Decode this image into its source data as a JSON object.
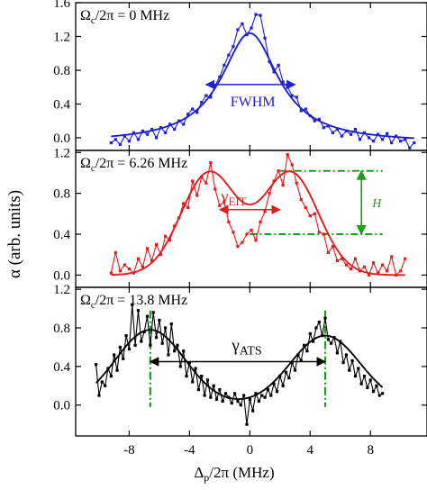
{
  "figure": {
    "ylabel": "α (arb. units)",
    "xlabel_main": "Δ",
    "xlabel_sub": "p",
    "xlabel_rest": "/2π (MHz)",
    "x_ticks": [
      -8,
      -4,
      0,
      4,
      8
    ],
    "x_tick_labels": [
      "-8",
      "-4",
      "0",
      "4",
      "8"
    ]
  },
  "chart_data": [
    {
      "type": "line",
      "panel": "top",
      "color": "#1f1fd6",
      "label_main": "Ω",
      "label_sub": "c",
      "label_rest": "/2π = 0 MHz",
      "annotations": {
        "fwhm": "FWHM"
      },
      "ylim": [
        -0.15,
        1.6
      ],
      "y_ticks": [
        0.0,
        0.4,
        0.8,
        1.2,
        1.6
      ],
      "y_tick_labels": [
        "0.0",
        "0.4",
        "0.8",
        "1.2",
        "1.6"
      ],
      "data_points": [
        [
          -9.2,
          -0.06
        ],
        [
          -8.9,
          -0.02
        ],
        [
          -8.6,
          -0.08
        ],
        [
          -8.3,
          0.02
        ],
        [
          -8.0,
          -0.04
        ],
        [
          -7.7,
          0.06
        ],
        [
          -7.4,
          -0.02
        ],
        [
          -7.1,
          0.08
        ],
        [
          -6.8,
          0.04
        ],
        [
          -6.5,
          0.1
        ],
        [
          -6.2,
          0.0
        ],
        [
          -5.9,
          0.12
        ],
        [
          -5.6,
          0.06
        ],
        [
          -5.3,
          0.16
        ],
        [
          -5.0,
          0.1
        ],
        [
          -4.7,
          0.2
        ],
        [
          -4.4,
          0.16
        ],
        [
          -4.1,
          0.28
        ],
        [
          -3.8,
          0.34
        ],
        [
          -3.5,
          0.3
        ],
        [
          -3.2,
          0.42
        ],
        [
          -2.9,
          0.5
        ],
        [
          -2.6,
          0.48
        ],
        [
          -2.3,
          0.62
        ],
        [
          -2.0,
          0.72
        ],
        [
          -1.7,
          0.86
        ],
        [
          -1.4,
          0.98
        ],
        [
          -1.1,
          1.08
        ],
        [
          -0.8,
          1.28
        ],
        [
          -0.5,
          1.35
        ],
        [
          -0.2,
          1.22
        ],
        [
          0.1,
          1.3
        ],
        [
          0.4,
          1.46
        ],
        [
          0.7,
          1.45
        ],
        [
          1.0,
          1.18
        ],
        [
          1.3,
          0.9
        ],
        [
          1.6,
          0.78
        ],
        [
          1.9,
          0.86
        ],
        [
          2.2,
          0.66
        ],
        [
          2.5,
          0.6
        ],
        [
          2.8,
          0.5
        ],
        [
          3.1,
          0.48
        ],
        [
          3.4,
          0.32
        ],
        [
          3.7,
          0.34
        ],
        [
          4.0,
          0.26
        ],
        [
          4.3,
          0.2
        ],
        [
          4.6,
          0.22
        ],
        [
          4.9,
          0.12
        ],
        [
          5.2,
          0.14
        ],
        [
          5.5,
          0.06
        ],
        [
          5.8,
          0.1
        ],
        [
          6.1,
          0.02
        ],
        [
          6.4,
          0.08
        ],
        [
          6.7,
          0.04
        ],
        [
          7.0,
          0.1
        ],
        [
          7.3,
          -0.02
        ],
        [
          7.6,
          0.06
        ],
        [
          7.9,
          0.0
        ],
        [
          8.2,
          -0.04
        ],
        [
          8.5,
          0.04
        ],
        [
          8.8,
          -0.02
        ],
        [
          9.1,
          0.05
        ],
        [
          9.4,
          -0.06
        ],
        [
          9.7,
          0.02
        ],
        [
          10.0,
          -0.04
        ],
        [
          10.3,
          -0.02
        ],
        [
          10.6,
          -0.12
        ],
        [
          10.9,
          -0.06
        ]
      ],
      "fit": {
        "model": "lorentzian",
        "amplitude": 1.3,
        "center": 0.0,
        "fwhm": 4.6,
        "offset": -0.06
      },
      "fwhm_arrow": {
        "x_start": -2.9,
        "x_end": 3.0,
        "y": 0.63
      }
    },
    {
      "type": "line",
      "panel": "middle",
      "color": "#e21b1b",
      "label_main": "Ω",
      "label_sub": "c",
      "label_rest": "/2π = 6.26 MHz",
      "annotations": {
        "gamma_main": "γ",
        "gamma_sub": "EIT",
        "h": "H"
      },
      "ylim": [
        -0.12,
        1.22
      ],
      "y_ticks": [
        0.0,
        0.4,
        0.8,
        1.2
      ],
      "y_tick_labels": [
        "0.0",
        "0.4",
        "0.8",
        "1.2"
      ],
      "data_points": [
        [
          -9.2,
          0.02
        ],
        [
          -8.9,
          0.22
        ],
        [
          -8.6,
          0.04
        ],
        [
          -8.3,
          0.1
        ],
        [
          -8.0,
          0.06
        ],
        [
          -7.7,
          0.02
        ],
        [
          -7.4,
          0.16
        ],
        [
          -7.1,
          0.08
        ],
        [
          -6.8,
          0.26
        ],
        [
          -6.5,
          0.14
        ],
        [
          -6.2,
          0.3
        ],
        [
          -5.9,
          0.2
        ],
        [
          -5.6,
          0.38
        ],
        [
          -5.3,
          0.34
        ],
        [
          -5.0,
          0.48
        ],
        [
          -4.7,
          0.56
        ],
        [
          -4.4,
          0.7
        ],
        [
          -4.1,
          0.66
        ],
        [
          -3.8,
          0.92
        ],
        [
          -3.5,
          0.78
        ],
        [
          -3.2,
          0.96
        ],
        [
          -2.9,
          0.9
        ],
        [
          -2.6,
          1.1
        ],
        [
          -2.3,
          0.84
        ],
        [
          -2.0,
          0.68
        ],
        [
          -1.7,
          0.72
        ],
        [
          -1.4,
          0.52
        ],
        [
          -1.1,
          0.42
        ],
        [
          -0.8,
          0.28
        ],
        [
          -0.5,
          0.32
        ],
        [
          -0.2,
          0.4
        ],
        [
          0.1,
          0.44
        ],
        [
          0.4,
          0.34
        ],
        [
          0.7,
          0.52
        ],
        [
          1.0,
          0.62
        ],
        [
          1.3,
          0.8
        ],
        [
          1.6,
          0.92
        ],
        [
          1.9,
          1.02
        ],
        [
          2.2,
          0.88
        ],
        [
          2.5,
          1.18
        ],
        [
          2.8,
          1.08
        ],
        [
          3.1,
          0.9
        ],
        [
          3.4,
          0.74
        ],
        [
          3.7,
          0.66
        ],
        [
          4.0,
          0.58
        ],
        [
          4.3,
          0.6
        ],
        [
          4.6,
          0.42
        ],
        [
          4.9,
          0.4
        ],
        [
          5.2,
          0.22
        ],
        [
          5.5,
          0.28
        ],
        [
          5.8,
          0.14
        ],
        [
          6.1,
          0.16
        ],
        [
          6.4,
          0.1
        ],
        [
          6.7,
          0.06
        ],
        [
          7.0,
          0.16
        ],
        [
          7.3,
          0.04
        ],
        [
          7.6,
          0.08
        ],
        [
          7.9,
          0.0
        ],
        [
          8.2,
          0.12
        ],
        [
          8.5,
          0.02
        ],
        [
          8.8,
          0.1
        ],
        [
          9.1,
          0.04
        ],
        [
          9.4,
          0.18
        ],
        [
          9.7,
          0.0
        ],
        [
          10.0,
          0.04
        ],
        [
          10.3,
          0.16
        ]
      ],
      "fit": {
        "model": "double-gaussian",
        "peaks": [
          [
            -2.7,
            1.0
          ],
          [
            2.7,
            1.0
          ]
        ],
        "sigma": 1.85,
        "offset": 0.0
      },
      "gamma_arrow": {
        "x_start": -2.0,
        "x_end": 2.0,
        "y": 0.64
      },
      "h_arrow": {
        "x": 7.4,
        "y_bottom": 0.4,
        "y_top": 1.02
      },
      "ref_lines": [
        {
          "x_start": 2.0,
          "x_end": 8.8,
          "y": 1.02
        },
        {
          "x_start": 0.0,
          "x_end": 8.8,
          "y": 0.4
        }
      ]
    },
    {
      "type": "line",
      "panel": "bottom",
      "color": "#000000",
      "accent": "#1aa01a",
      "label_main": "Ω",
      "label_sub": "c",
      "label_rest": "/2π = 13.8 MHz",
      "annotations": {
        "gamma_main": "γ",
        "gamma_sub": "ATS"
      },
      "ylim": [
        -0.32,
        1.22
      ],
      "y_ticks": [
        0.0,
        0.4,
        0.8,
        1.2
      ],
      "y_tick_labels": [
        "0.0",
        "0.4",
        "0.8",
        "1.2"
      ],
      "data_points": [
        [
          -10.2,
          0.42
        ],
        [
          -10.0,
          0.1
        ],
        [
          -9.8,
          0.24
        ],
        [
          -9.6,
          0.2
        ],
        [
          -9.4,
          0.38
        ],
        [
          -9.2,
          0.3
        ],
        [
          -9.0,
          0.52
        ],
        [
          -8.8,
          0.36
        ],
        [
          -8.6,
          0.6
        ],
        [
          -8.4,
          0.48
        ],
        [
          -8.2,
          0.72
        ],
        [
          -8.0,
          0.58
        ],
        [
          -7.8,
          1.04
        ],
        [
          -7.6,
          0.62
        ],
        [
          -7.4,
          0.98
        ],
        [
          -7.2,
          0.66
        ],
        [
          -7.0,
          0.76
        ],
        [
          -6.8,
          0.92
        ],
        [
          -6.6,
          0.62
        ],
        [
          -6.4,
          0.96
        ],
        [
          -6.2,
          0.7
        ],
        [
          -6.0,
          0.88
        ],
        [
          -5.8,
          0.64
        ],
        [
          -5.6,
          0.8
        ],
        [
          -5.4,
          0.52
        ],
        [
          -5.2,
          0.84
        ],
        [
          -5.0,
          0.56
        ],
        [
          -4.8,
          0.62
        ],
        [
          -4.6,
          0.4
        ],
        [
          -4.4,
          0.56
        ],
        [
          -4.2,
          0.3
        ],
        [
          -4.0,
          0.44
        ],
        [
          -3.8,
          0.24
        ],
        [
          -3.6,
          0.38
        ],
        [
          -3.4,
          0.16
        ],
        [
          -3.2,
          0.3
        ],
        [
          -3.0,
          0.1
        ],
        [
          -2.8,
          0.26
        ],
        [
          -2.6,
          0.08
        ],
        [
          -2.4,
          0.2
        ],
        [
          -2.2,
          0.06
        ],
        [
          -2.0,
          0.16
        ],
        [
          -1.8,
          0.04
        ],
        [
          -1.6,
          0.12
        ],
        [
          -1.4,
          0.08
        ],
        [
          -1.2,
          0.02
        ],
        [
          -1.0,
          0.12
        ],
        [
          -0.8,
          0.04
        ],
        [
          -0.6,
          0.0
        ],
        [
          -0.4,
          0.1
        ],
        [
          -0.2,
          -0.2
        ],
        [
          0.0,
          0.06
        ],
        [
          0.2,
          -0.06
        ],
        [
          0.4,
          0.12
        ],
        [
          0.6,
          0.04
        ],
        [
          0.8,
          0.1
        ],
        [
          1.0,
          0.08
        ],
        [
          1.2,
          0.16
        ],
        [
          1.4,
          0.1
        ],
        [
          1.6,
          0.22
        ],
        [
          1.8,
          0.14
        ],
        [
          2.0,
          0.3
        ],
        [
          2.2,
          0.2
        ],
        [
          2.4,
          0.34
        ],
        [
          2.6,
          0.28
        ],
        [
          2.8,
          0.44
        ],
        [
          3.0,
          0.36
        ],
        [
          3.2,
          0.52
        ],
        [
          3.4,
          0.46
        ],
        [
          3.6,
          0.62
        ],
        [
          3.8,
          0.56
        ],
        [
          4.0,
          0.74
        ],
        [
          4.2,
          0.66
        ],
        [
          4.4,
          0.8
        ],
        [
          4.6,
          0.86
        ],
        [
          4.8,
          0.72
        ],
        [
          5.0,
          0.9
        ],
        [
          5.2,
          0.68
        ],
        [
          5.4,
          0.64
        ],
        [
          5.6,
          0.7
        ],
        [
          5.8,
          0.54
        ],
        [
          6.0,
          0.66
        ],
        [
          6.2,
          0.44
        ],
        [
          6.4,
          0.52
        ],
        [
          6.6,
          0.36
        ],
        [
          6.8,
          0.46
        ],
        [
          7.0,
          0.3
        ],
        [
          7.2,
          0.38
        ],
        [
          7.4,
          0.22
        ],
        [
          7.6,
          0.3
        ],
        [
          7.8,
          0.18
        ],
        [
          8.0,
          0.26
        ],
        [
          8.2,
          0.14
        ],
        [
          8.4,
          0.2
        ],
        [
          8.6,
          0.1
        ],
        [
          8.8,
          0.12
        ]
      ],
      "fit": {
        "model": "double-gaussian",
        "peaks": [
          [
            -6.6,
            0.78
          ],
          [
            5.0,
            0.72
          ]
        ],
        "sigma": 2.3,
        "offset": 0.0
      },
      "gamma_arrow": {
        "x_start": -6.6,
        "x_end": 5.0,
        "y": 0.45
      },
      "marker_lines": [
        -6.6,
        5.0
      ]
    }
  ]
}
